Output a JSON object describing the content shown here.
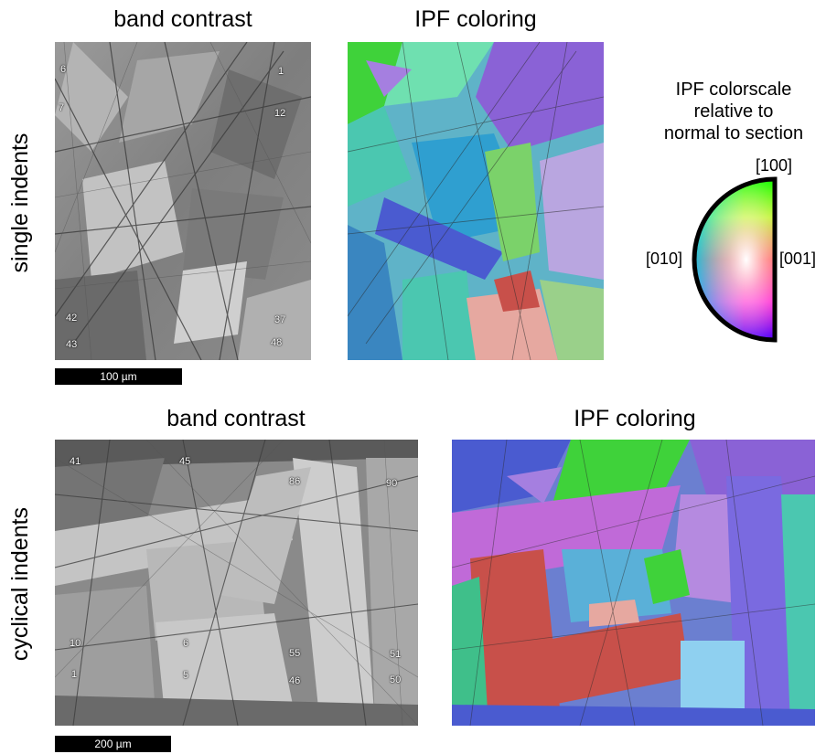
{
  "top_row": {
    "row_label": "single indents",
    "band_title": "band contrast",
    "ipf_title": "IPF coloring",
    "points": [
      "6",
      "1",
      "7",
      "12",
      "42",
      "37",
      "43",
      "48"
    ],
    "scale_label": "100 µm"
  },
  "bottom_row": {
    "row_label": "cyclical indents",
    "band_title": "band contrast",
    "ipf_title": "IPF coloring",
    "points": [
      "41",
      "45",
      "86",
      "90",
      "10",
      "6",
      "55",
      "51",
      "1",
      "5",
      "46",
      "50"
    ],
    "scale_label": "200 µm"
  },
  "colorscale": {
    "title_lines": [
      "IPF colorscale",
      "relative to",
      "normal to section"
    ],
    "dir_100": "[100]",
    "dir_010": "[010]",
    "dir_001": "[001]"
  },
  "colors": {
    "ipf_green": "#3fd23a",
    "ipf_teal": "#4bc7b0",
    "ipf_purple": "#8a62d6",
    "ipf_blue": "#4a5bd0",
    "ipf_red": "#c8504a",
    "ipf_pink": "#e6a8a0"
  }
}
